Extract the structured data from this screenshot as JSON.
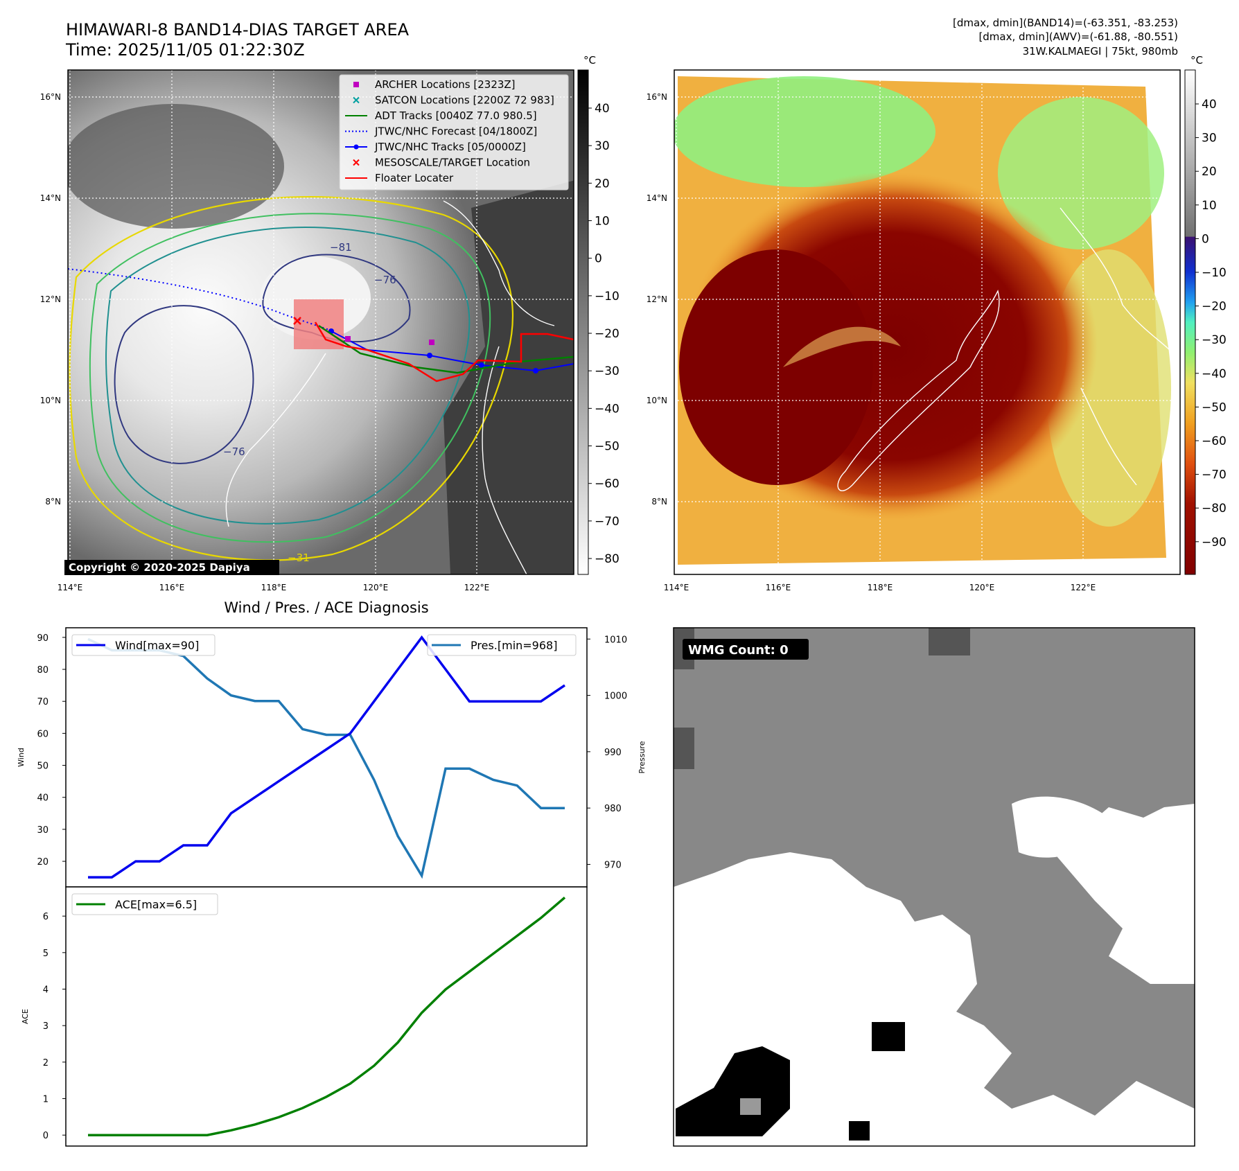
{
  "header": {
    "title_line1": "HIMAWARI-8 BAND14-DIAS TARGET AREA",
    "title_line2": "Time: 2025/11/05 01:22:30Z",
    "right_line1": "[dmax, dmin](BAND14)=(-63.351, -83.253)",
    "right_line2": "[dmax, dmin](AWV)=(-61.88, -80.551)",
    "right_line3": "31W.KALMAEGI | 75kt, 980mb"
  },
  "maps": {
    "lon_ticks": [
      "114°E",
      "116°E",
      "118°E",
      "120°E",
      "122°E"
    ],
    "lat_ticks": [
      "16°N",
      "14°N",
      "12°N",
      "10°N",
      "8°N"
    ],
    "colorbar_unit": "°C",
    "bw_colorbar_ticks": [
      "40",
      "30",
      "20",
      "10",
      "0",
      "−10",
      "−20",
      "−30",
      "−40",
      "−50",
      "−60",
      "−70",
      "−80"
    ],
    "color_colorbar_ticks": [
      "40",
      "30",
      "20",
      "10",
      "0",
      "−10",
      "−20",
      "−30",
      "−40",
      "−50",
      "−60",
      "−70",
      "−80",
      "−90"
    ],
    "contour_labels": [
      "−81",
      "−76",
      "−76",
      "−31"
    ],
    "copyright": "Copyright © 2020-2025 Dapiya",
    "legend": [
      {
        "label": "ARCHER Locations [2323Z]",
        "color": "#c000c0",
        "marker": "square"
      },
      {
        "label": "SATCON Locations [2200Z 72 983]",
        "color": "#00a0a0",
        "marker": "x"
      },
      {
        "label": "ADT Tracks [0040Z 77.0 980.5]",
        "color": "#008000",
        "marker": "line"
      },
      {
        "label": "JTWC/NHC Forecast [04/1800Z]",
        "color": "#0000ff",
        "marker": "dotted"
      },
      {
        "label": "JTWC/NHC Tracks [05/0000Z]",
        "color": "#0000ff",
        "marker": "line-dot"
      },
      {
        "label": "MESOSCALE/TARGET Location",
        "color": "#ff0000",
        "marker": "x"
      },
      {
        "label": "Floater Locater",
        "color": "#ff0000",
        "marker": "line"
      }
    ]
  },
  "diagnosis": {
    "title": "Wind / Pres. / ACE Diagnosis",
    "wind_ylabel": "Wind",
    "pres_ylabel": "Pressure",
    "ace_ylabel": "ACE",
    "wind_legend": "Wind[max=90]",
    "pres_legend": "Pres.[min=968]",
    "ace_legend": "ACE[max=6.5]",
    "wind_color": "#0000ee",
    "pres_color": "#1f77b4",
    "ace_color": "#008000"
  },
  "wmg": {
    "label": "WMG Count: 0"
  },
  "chart_data": [
    {
      "type": "line",
      "title": "Wind / Pres. / ACE Diagnosis",
      "x": [
        0,
        1,
        2,
        3,
        4,
        5,
        6,
        7,
        8,
        9,
        10,
        11,
        12,
        13,
        14,
        15,
        16,
        17,
        18,
        19,
        20
      ],
      "series": [
        {
          "name": "Wind[max=90]",
          "axis": "left",
          "values": [
            15,
            15,
            20,
            20,
            25,
            25,
            35,
            40,
            45,
            50,
            55,
            60,
            70,
            80,
            90,
            80,
            70,
            70,
            70,
            70,
            75
          ]
        },
        {
          "name": "Pres.[min=968]",
          "axis": "right",
          "values": [
            1010,
            1008,
            1008,
            1008,
            1007,
            1003,
            1000,
            999,
            999,
            994,
            993,
            993,
            985,
            975,
            968,
            987,
            987,
            985,
            984,
            980,
            980
          ]
        }
      ],
      "ylabel": "Wind",
      "ylim": [
        12,
        93
      ],
      "yticks": [
        20,
        30,
        40,
        50,
        60,
        70,
        80,
        90
      ],
      "y2label": "Pressure",
      "y2lim": [
        966,
        1012
      ],
      "y2ticks": [
        970,
        980,
        990,
        1000,
        1010
      ]
    },
    {
      "type": "line",
      "x": [
        0,
        1,
        2,
        3,
        4,
        5,
        6,
        7,
        8,
        9,
        10,
        11,
        12,
        13,
        14,
        15,
        16,
        17,
        18,
        19,
        20
      ],
      "series": [
        {
          "name": "ACE[max=6.5]",
          "values": [
            0,
            0,
            0,
            0,
            0,
            0,
            0.13,
            0.29,
            0.49,
            0.74,
            1.05,
            1.41,
            1.9,
            2.54,
            3.35,
            3.99,
            4.48,
            4.97,
            5.46,
            5.95,
            6.51
          ]
        }
      ],
      "ylabel": "ACE",
      "ylim": [
        -0.3,
        6.8
      ],
      "yticks": [
        0,
        1,
        2,
        3,
        4,
        5,
        6
      ]
    }
  ]
}
